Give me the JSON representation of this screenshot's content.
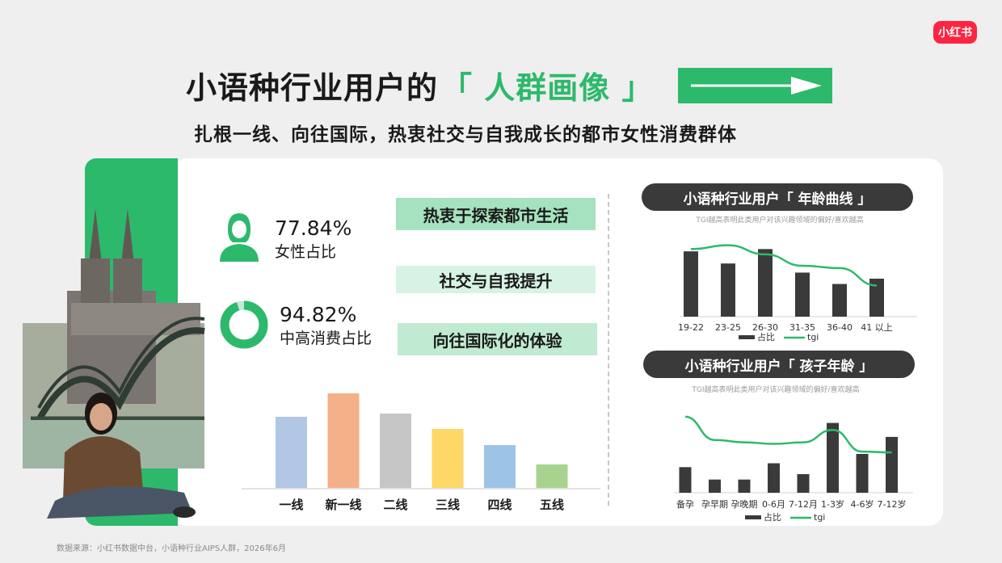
{
  "brand": {
    "logo_text": "小红书",
    "logo_color": "#ff2442"
  },
  "title": {
    "main": "小语种行业用户的",
    "accent": "「 人群画像 」"
  },
  "subtitle": "扎根一线、向往国际，热衷社交与自我成长的都市女性消费群体",
  "colors": {
    "accent": "#2db96b",
    "dark": "#3a3a3a"
  },
  "stats": [
    {
      "value": "77.84%",
      "label": "女性占比",
      "icon": "female-user-icon"
    },
    {
      "value": "94.82%",
      "label": "中高消费占比",
      "icon": "donut-chart-icon",
      "fraction": 0.9482
    }
  ],
  "tags": [
    "热衷于探索都市生活",
    "社交与自我提升",
    "向往国际化的体验"
  ],
  "chart_data": [
    {
      "type": "bar",
      "categories": [
        "一线",
        "新一线",
        "二线",
        "三线",
        "四线",
        "五线"
      ],
      "values": [
        88,
        117,
        92,
        73,
        53,
        29
      ],
      "colors": [
        "#b2c6e6",
        "#f4b088",
        "#c6c6c6",
        "#fdd867",
        "#9dc3e7",
        "#a8d38e"
      ],
      "ylim": [
        0,
        120
      ]
    },
    {
      "type": "bar+line",
      "title": "小语种行业用户「 年龄曲线 」",
      "note": "TGI越高表明此类用户对该兴趣领域的偏好/喜欢越高",
      "categories": [
        "19-22",
        "23-25",
        "26-30",
        "31-35",
        "36-40",
        "41 以上"
      ],
      "series": [
        {
          "name": "占比",
          "type": "bar",
          "values": [
            86,
            70,
            89,
            58,
            43,
            50
          ]
        },
        {
          "name": "tgi",
          "type": "line",
          "values": [
            89,
            94,
            82,
            67,
            64,
            41
          ]
        }
      ],
      "ylim": [
        0,
        100
      ]
    },
    {
      "type": "bar+line",
      "title": "小语种行业用户「 孩子年龄 」",
      "note": "TGI越高表明此类用户对该兴趣领域的偏好/喜欢越高",
      "categories": [
        "备孕",
        "孕早期",
        "孕晚期",
        "0-6月",
        "7-12月",
        "1-3岁",
        "4-6岁",
        "7-12岁"
      ],
      "series": [
        {
          "name": "占比",
          "type": "bar",
          "values": [
            33,
            17,
            17,
            38,
            24,
            90,
            50,
            72
          ]
        },
        {
          "name": "tgi",
          "type": "line",
          "values": [
            98,
            68,
            65,
            63,
            65,
            81,
            53,
            52
          ]
        }
      ],
      "ylim": [
        0,
        100
      ]
    }
  ],
  "footer": "数据来源：小红书数据中台，小语种行业AIPS人群，2026年6月"
}
